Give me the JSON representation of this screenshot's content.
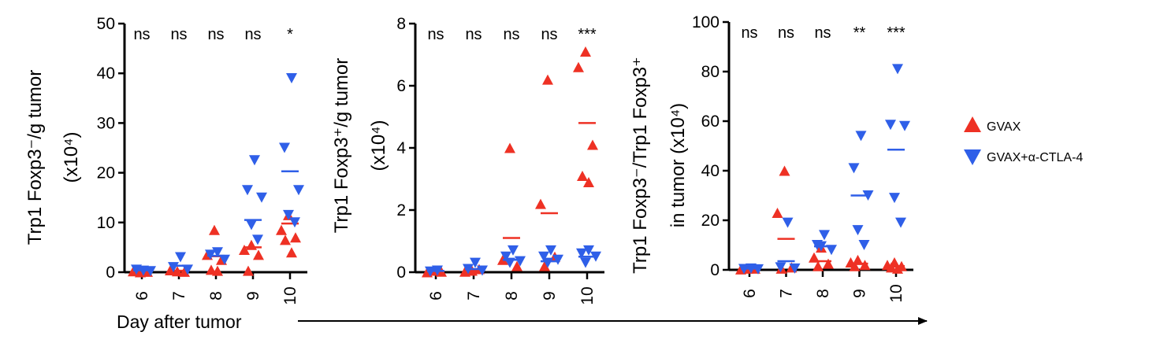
{
  "colors": {
    "gvax": "#ee3124",
    "gvax_ctla4": "#2f5fe8",
    "axis": "#000000"
  },
  "legend": [
    {
      "label": "GVAX",
      "marker": "triangle-up",
      "color": "#ee3124"
    },
    {
      "label": "GVAX+α-CTLA-4",
      "marker": "triangle-down",
      "color": "#2f5fe8"
    }
  ],
  "shared_xlabel": "Day after tumor",
  "chart_data": [
    {
      "type": "scatter",
      "ylabel": [
        "Trp1 Foxp3⁻/g tumor",
        "(x10⁴)"
      ],
      "ylim": [
        0,
        50
      ],
      "yticks": [
        0,
        10,
        20,
        30,
        40,
        50
      ],
      "categories": [
        "6",
        "7",
        "8",
        "9",
        "10"
      ],
      "significance": [
        "ns",
        "ns",
        "ns",
        "ns",
        "*"
      ],
      "series": [
        {
          "name": "GVAX",
          "marker": "triangle-up",
          "points": [
            [
              0,
              0
            ],
            [
              0,
              0.2
            ],
            [
              0,
              0.1
            ],
            [
              1,
              0.2
            ],
            [
              1,
              0.4
            ],
            [
              1,
              0.1
            ],
            [
              2,
              8.5
            ],
            [
              2,
              3.5
            ],
            [
              2,
              2.5
            ],
            [
              2,
              0.5
            ],
            [
              2,
              0.3
            ],
            [
              3,
              5.5
            ],
            [
              3,
              4.5
            ],
            [
              3,
              3.5
            ],
            [
              3,
              0.3
            ],
            [
              4,
              11.5
            ],
            [
              4,
              8.5
            ],
            [
              4,
              7
            ],
            [
              4,
              6.5
            ],
            [
              4,
              4
            ]
          ],
          "means": [
            0.1,
            0.3,
            3.2,
            5,
            9.8
          ]
        },
        {
          "name": "GVAX+α-CTLA-4",
          "marker": "triangle-down",
          "points": [
            [
              0,
              0.3
            ],
            [
              0,
              0.5
            ],
            [
              0,
              0.2
            ],
            [
              1,
              3
            ],
            [
              1,
              1
            ],
            [
              1,
              0.5
            ],
            [
              2,
              4
            ],
            [
              2,
              3.5
            ],
            [
              2,
              2.5
            ],
            [
              3,
              22.5
            ],
            [
              3,
              16.5
            ],
            [
              3,
              15
            ],
            [
              3,
              9.5
            ],
            [
              3,
              6.5
            ],
            [
              4,
              39
            ],
            [
              4,
              25
            ],
            [
              4,
              16.5
            ],
            [
              4,
              11.5
            ],
            [
              4,
              10
            ]
          ],
          "means": [
            0.4,
            1.3,
            3.3,
            10.5,
            20.3
          ]
        }
      ]
    },
    {
      "type": "scatter",
      "ylabel": [
        "Trp1 Foxp3⁺/g tumor",
        "(x10⁴)"
      ],
      "ylim": [
        0,
        8
      ],
      "yticks": [
        0,
        2,
        4,
        6,
        8
      ],
      "categories": [
        "6",
        "7",
        "8",
        "9",
        "10"
      ],
      "significance": [
        "ns",
        "ns",
        "ns",
        "ns",
        "***"
      ],
      "series": [
        {
          "name": "GVAX",
          "marker": "triangle-up",
          "points": [
            [
              0,
              0.05
            ],
            [
              0,
              0
            ],
            [
              0,
              0.02
            ],
            [
              1,
              0.05
            ],
            [
              1,
              0.02
            ],
            [
              1,
              0.1
            ],
            [
              2,
              4
            ],
            [
              2,
              0.4
            ],
            [
              2,
              0.2
            ],
            [
              3,
              6.2
            ],
            [
              3,
              2.2
            ],
            [
              3,
              0.5
            ],
            [
              3,
              0.2
            ],
            [
              4,
              7.1
            ],
            [
              4,
              6.6
            ],
            [
              4,
              4.1
            ],
            [
              4,
              3.1
            ],
            [
              4,
              2.9
            ]
          ],
          "means": [
            0.03,
            0.05,
            1.1,
            1.9,
            4.8
          ]
        },
        {
          "name": "GVAX+α-CTLA-4",
          "marker": "triangle-down",
          "points": [
            [
              0,
              0.05
            ],
            [
              0,
              0.02
            ],
            [
              1,
              0.3
            ],
            [
              1,
              0.1
            ],
            [
              1,
              0.05
            ],
            [
              2,
              0.7
            ],
            [
              2,
              0.5
            ],
            [
              2,
              0.35
            ],
            [
              2,
              0.3
            ],
            [
              3,
              0.7
            ],
            [
              3,
              0.5
            ],
            [
              3,
              0.4
            ],
            [
              3,
              0.3
            ],
            [
              4,
              0.7
            ],
            [
              4,
              0.6
            ],
            [
              4,
              0.5
            ],
            [
              4,
              0.3
            ]
          ],
          "means": [
            0.04,
            0.1,
            0.4,
            0.35,
            0.5
          ]
        }
      ]
    },
    {
      "type": "scatter",
      "ylabel": [
        "Trp1 Foxp3⁻/Trp1 Foxp3⁺",
        "in tumor (x10⁴)"
      ],
      "ylim": [
        0,
        100
      ],
      "yticks": [
        0,
        20,
        40,
        60,
        80,
        100
      ],
      "categories": [
        "6",
        "7",
        "8",
        "9",
        "10"
      ],
      "significance": [
        "ns",
        "ns",
        "ns",
        "**",
        "***"
      ],
      "series": [
        {
          "name": "GVAX",
          "marker": "triangle-up",
          "points": [
            [
              0,
              0.5
            ],
            [
              0,
              0.2
            ],
            [
              0,
              0.5
            ],
            [
              1,
              40
            ],
            [
              1,
              23
            ],
            [
              1,
              1
            ],
            [
              1,
              0.5
            ],
            [
              2,
              9
            ],
            [
              2,
              5
            ],
            [
              2,
              2.5
            ],
            [
              2,
              1.5
            ],
            [
              3,
              4
            ],
            [
              3,
              3
            ],
            [
              3,
              2
            ],
            [
              3,
              1.5
            ],
            [
              4,
              3
            ],
            [
              4,
              2
            ],
            [
              4,
              1.5
            ],
            [
              4,
              1
            ],
            [
              4,
              0.5
            ]
          ],
          "means": [
            0.3,
            12.5,
            3.5,
            2.5,
            1.5
          ]
        },
        {
          "name": "GVAX+α-CTLA-4",
          "marker": "triangle-down",
          "points": [
            [
              0,
              0.5
            ],
            [
              0,
              0.3
            ],
            [
              0,
              0.2
            ],
            [
              1,
              19
            ],
            [
              1,
              1
            ],
            [
              1,
              0.5
            ],
            [
              2,
              14
            ],
            [
              2,
              10
            ],
            [
              2,
              8
            ],
            [
              2,
              9.5
            ],
            [
              3,
              54
            ],
            [
              3,
              41
            ],
            [
              3,
              30
            ],
            [
              3,
              16
            ],
            [
              3,
              10
            ],
            [
              4,
              81
            ],
            [
              4,
              58.5
            ],
            [
              4,
              58
            ],
            [
              4,
              29
            ],
            [
              4,
              19
            ]
          ],
          "means": [
            0.5,
            3.5,
            9.5,
            30,
            48.5
          ]
        }
      ]
    }
  ]
}
